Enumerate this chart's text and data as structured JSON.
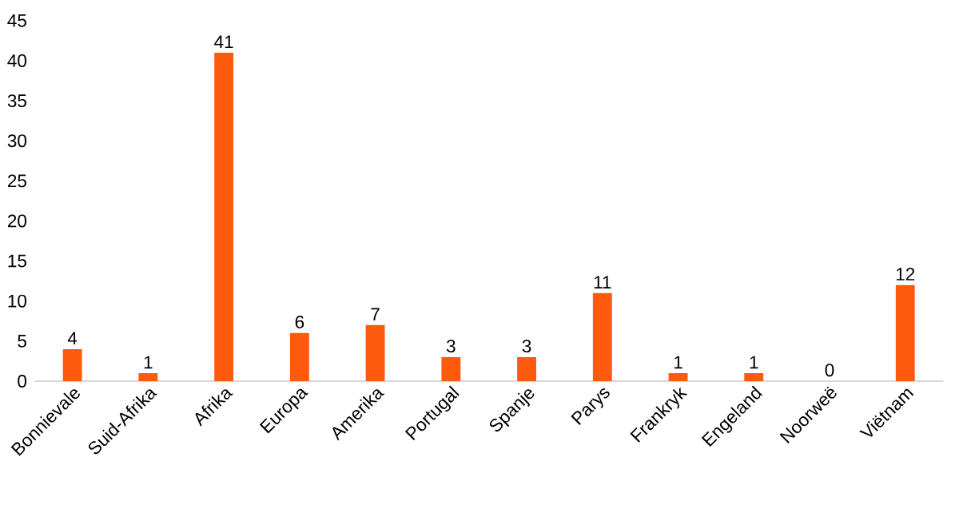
{
  "chart_data": {
    "type": "bar",
    "categories": [
      "Bonnievale",
      "Suid-Afrika",
      "Afrika",
      "Europa",
      "Amerika",
      "Portugal",
      "Spanje",
      "Parys",
      "Frankryk",
      "Engeland",
      "Noorweë",
      "Viëtnam"
    ],
    "values": [
      4,
      1,
      41,
      6,
      7,
      3,
      3,
      11,
      1,
      1,
      0,
      12
    ],
    "color": "#fe5a0e",
    "ylim": [
      0,
      45
    ],
    "yticks": [
      0,
      5,
      10,
      15,
      20,
      25,
      30,
      35,
      40,
      45
    ],
    "data_labels": true
  }
}
